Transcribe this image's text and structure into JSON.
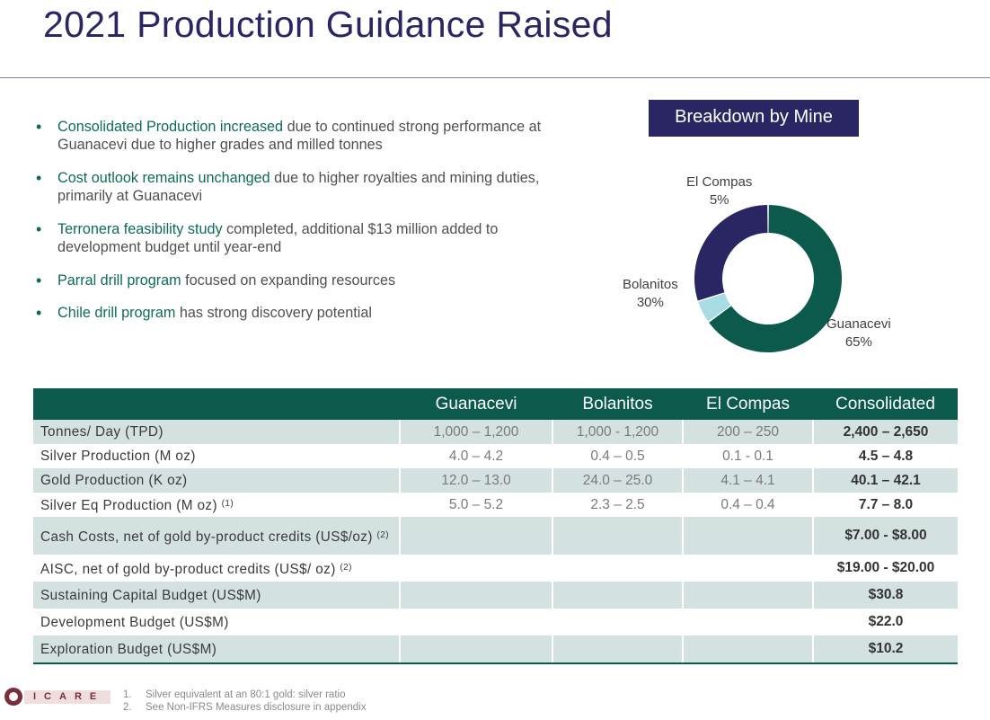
{
  "title": "2021 Production Guidance Raised",
  "bullets": [
    {
      "hl": "Consolidated Production increased",
      "rest": " due to continued strong performance at Guanacevi due to higher grades and milled tonnes"
    },
    {
      "hl": "Cost outlook remains unchanged",
      "rest": " due to higher royalties and mining duties, primarily at Guanacevi"
    },
    {
      "hl": "Terronera feasibility study",
      "rest": " completed, additional $13 million added to development budget until year-end"
    },
    {
      "hl": "Parral drill program",
      "rest": " focused on expanding resources"
    },
    {
      "hl": "Chile drill program",
      "rest": " has strong discovery potential"
    }
  ],
  "breakdown_header": "Breakdown by Mine",
  "chart_data": {
    "type": "pie",
    "variant": "donut",
    "slices": [
      {
        "name": "Guanacevi",
        "label": "65%",
        "value": 65,
        "color": "#0b5a4c"
      },
      {
        "name": "El Compas",
        "label": "5%",
        "value": 5,
        "color": "#a9dbe3"
      },
      {
        "name": "Bolanitos",
        "label": "30%",
        "value": 30,
        "color": "#2a2563"
      }
    ]
  },
  "table": {
    "headers": [
      "",
      "Guanacevi",
      "Bolanitos",
      "El Compas",
      "Consolidated"
    ],
    "rows": [
      {
        "label": "Tonnes/ Day (TPD)",
        "fn": "",
        "values": [
          "1,000 – 1,200",
          "1,000 - 1,200",
          "200 – 250",
          "2,400 – 2,650"
        ]
      },
      {
        "label": "Silver Production  (M oz)",
        "fn": "",
        "values": [
          "4.0 – 4.2",
          "0.4 – 0.5",
          "0.1 - 0.1",
          "4.5 – 4.8"
        ]
      },
      {
        "label": "Gold Production (K oz)",
        "fn": "",
        "values": [
          "12.0 – 13.0",
          "24.0 – 25.0",
          "4.1 – 4.1",
          "40.1 – 42.1"
        ]
      },
      {
        "label": "Silver Eq Production (M oz)",
        "fn": "(1)",
        "values": [
          "5.0 – 5.2",
          "2.3 – 2.5",
          "0.4 – 0.4",
          "7.7 – 8.0"
        ]
      },
      {
        "label": "Cash Costs, net of gold by-product credits (US$/oz)",
        "fn": "(2)",
        "values": [
          "",
          "",
          "",
          "$7.00 - $8.00"
        ]
      },
      {
        "label": "AISC, net of gold by-product credits (US$/ oz)",
        "fn": "(2)",
        "values": [
          "",
          "",
          "",
          "$19.00 - $20.00"
        ]
      },
      {
        "label": "Sustaining Capital Budget (US$M)",
        "fn": "",
        "values": [
          "",
          "",
          "",
          "$30.8"
        ]
      },
      {
        "label": "Development Budget (US$M)",
        "fn": "",
        "values": [
          "",
          "",
          "",
          "$22.0"
        ]
      },
      {
        "label": "Exploration Budget (US$M)",
        "fn": "",
        "values": [
          "",
          "",
          "",
          "$10.2"
        ]
      }
    ]
  },
  "logo": {
    "text": "ICARE"
  },
  "footnotes": [
    {
      "num": "1.",
      "text": "Silver equivalent at an 80:1 gold: silver ratio"
    },
    {
      "num": "2.",
      "text": "See Non-IFRS Measures disclosure in appendix"
    }
  ]
}
